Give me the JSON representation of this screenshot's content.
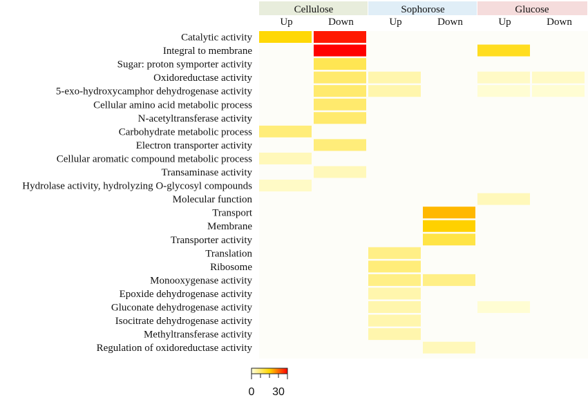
{
  "chart_data": {
    "type": "heatmap",
    "groups": [
      {
        "name": "Cellulose",
        "color": "#e8eddc"
      },
      {
        "name": "Sophorose",
        "color": "#e0eef7"
      },
      {
        "name": "Glucose",
        "color": "#f5dcdc"
      }
    ],
    "columns": [
      {
        "group": "Cellulose",
        "label": "Up"
      },
      {
        "group": "Cellulose",
        "label": "Down"
      },
      {
        "group": "Sophorose",
        "label": "Up"
      },
      {
        "group": "Sophorose",
        "label": "Down"
      },
      {
        "group": "Glucose",
        "label": "Up"
      },
      {
        "group": "Glucose",
        "label": "Down"
      }
    ],
    "rows": [
      "Catalytic activity",
      "Integral to membrane",
      "Sugar: proton symporter activity",
      "Oxidoreductase activity",
      "5-exo-hydroxycamphor dehydrogenase activity",
      "Cellular amino acid metabolic process",
      "N-acetyltransferase activity",
      "Carbohydrate metabolic process",
      "Electron transporter activity",
      "Cellular aromatic compound metabolic process",
      "Transaminase activity",
      "Hydrolase activity, hydrolyzing O-glycosyl compounds",
      "Molecular function",
      "Transport",
      "Membrane",
      "Transporter activity",
      "Translation",
      "Ribosome",
      "Monooxygenase activity",
      "Epoxide dehydrogenase activity",
      "Gluconate dehydrogenase activity",
      "Isocitrate dehydrogenase activity",
      "Methyltransferase activity",
      "Regulation of oxidoreductase activity"
    ],
    "values": [
      [
        17,
        33,
        null,
        null,
        null,
        null
      ],
      [
        null,
        35,
        null,
        null,
        15,
        null
      ],
      [
        null,
        11,
        null,
        null,
        null,
        null
      ],
      [
        null,
        9,
        4,
        null,
        2,
        2
      ],
      [
        null,
        9,
        4,
        null,
        1,
        1
      ],
      [
        null,
        9,
        null,
        null,
        null,
        null
      ],
      [
        null,
        9,
        null,
        null,
        null,
        null
      ],
      [
        8,
        null,
        null,
        null,
        null,
        null
      ],
      [
        null,
        8,
        null,
        null,
        null,
        null
      ],
      [
        3,
        null,
        null,
        null,
        null,
        null
      ],
      [
        null,
        3,
        null,
        null,
        null,
        null
      ],
      [
        2,
        null,
        null,
        null,
        null,
        null
      ],
      [
        null,
        null,
        null,
        null,
        3,
        null
      ],
      [
        null,
        null,
        null,
        20,
        null,
        null
      ],
      [
        null,
        null,
        null,
        18,
        null,
        null
      ],
      [
        null,
        null,
        null,
        12,
        null,
        null
      ],
      [
        null,
        null,
        7,
        null,
        null,
        null
      ],
      [
        null,
        null,
        8,
        null,
        null,
        null
      ],
      [
        null,
        null,
        7,
        7,
        null,
        null
      ],
      [
        null,
        null,
        4,
        null,
        null,
        null
      ],
      [
        null,
        null,
        4,
        null,
        1,
        null
      ],
      [
        null,
        null,
        4,
        null,
        null,
        null
      ],
      [
        null,
        null,
        4,
        null,
        null,
        null
      ],
      [
        null,
        null,
        null,
        3,
        null,
        null
      ]
    ],
    "color_scale": {
      "min": 0,
      "max": 35,
      "low_color": "#ffffe0",
      "mid_color": "#ffd700",
      "high_color": "#ff0000"
    },
    "legend": {
      "tick_labels": [
        "0",
        "30"
      ],
      "placement": "bottom-left"
    }
  }
}
